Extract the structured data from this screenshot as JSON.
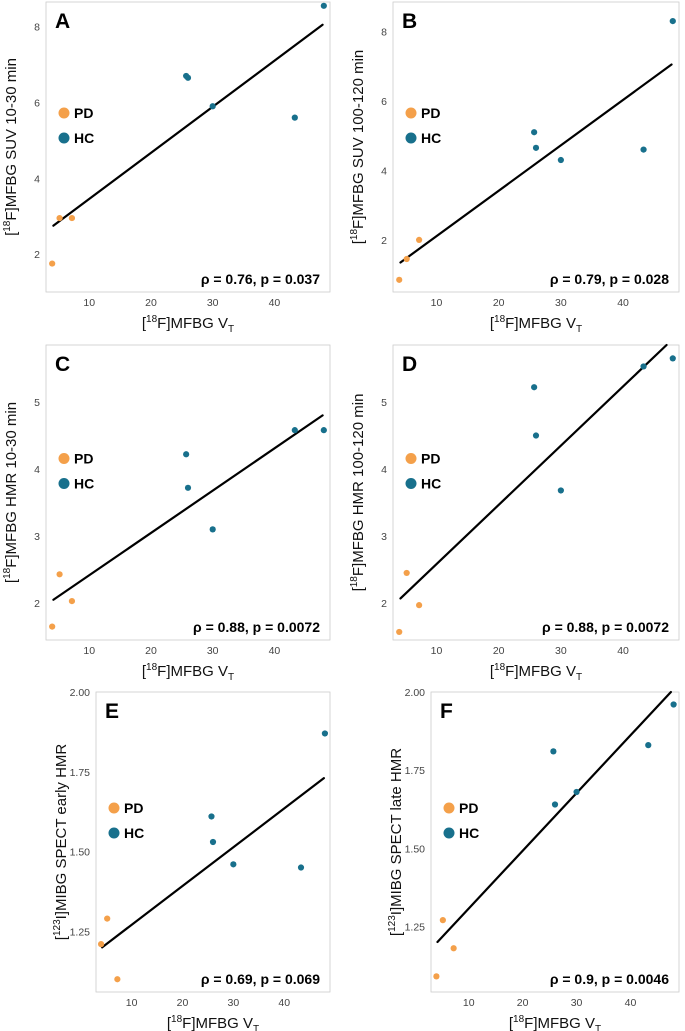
{
  "colors": {
    "PD": "#f4a04a",
    "HC": "#18708c",
    "fit": "#000000",
    "frame": "#cccccc"
  },
  "legend": [
    "PD",
    "HC"
  ],
  "chart_data": [
    {
      "id": "A",
      "type": "scatter",
      "xlabel": {
        "main": "[",
        "sup": "18",
        "mid": "F]MFBG V",
        "sub": "T"
      },
      "ylabel": {
        "pre": "[",
        "sup": "18",
        "post": "F]MFBG SUV 10-30 min"
      },
      "xlim": [
        3,
        49
      ],
      "ylim": [
        1.0,
        8.65
      ],
      "xticks": [
        10,
        20,
        30,
        40
      ],
      "yticks": [
        2,
        4,
        6,
        8
      ],
      "series": [
        {
          "name": "PD",
          "x": [
            4.0,
            5.2,
            7.2
          ],
          "y": [
            1.75,
            2.95,
            2.95
          ]
        },
        {
          "name": "HC",
          "x": [
            25.7,
            26.0,
            30.0,
            43.3,
            48.0
          ],
          "y": [
            6.7,
            6.65,
            5.9,
            5.6,
            8.55
          ]
        }
      ],
      "fit": {
        "x": [
          4.2,
          47.8
        ],
        "y": [
          2.75,
          8.05
        ]
      },
      "stat": "ρ = 0.76, p = 0.037"
    },
    {
      "id": "B",
      "type": "scatter",
      "xlabel": {
        "main": "[",
        "sup": "18",
        "mid": "F]MFBG V",
        "sub": "T"
      },
      "ylabel": {
        "pre": "[",
        "sup": "18",
        "post": "F]MFBG SUV 100-120 min"
      },
      "xlim": [
        3,
        49
      ],
      "ylim": [
        0.5,
        8.85
      ],
      "xticks": [
        10,
        20,
        30,
        40
      ],
      "yticks": [
        2,
        4,
        6,
        8
      ],
      "series": [
        {
          "name": "PD",
          "x": [
            4.0,
            5.2,
            7.2
          ],
          "y": [
            0.85,
            1.45,
            2.0
          ]
        },
        {
          "name": "HC",
          "x": [
            25.7,
            26.0,
            30.0,
            43.3,
            48.0
          ],
          "y": [
            5.1,
            4.65,
            4.3,
            4.6,
            8.3
          ]
        }
      ],
      "fit": {
        "x": [
          4.2,
          47.8
        ],
        "y": [
          1.35,
          7.05
        ]
      },
      "stat": "ρ = 0.79, p = 0.028"
    },
    {
      "id": "C",
      "type": "scatter",
      "xlabel": {
        "main": "[",
        "sup": "18",
        "mid": "F]MFBG V",
        "sub": "T"
      },
      "ylabel": {
        "pre": "[",
        "sup": "18",
        "post": "F]MFBG HMR 10-30 min"
      },
      "xlim": [
        3,
        49
      ],
      "ylim": [
        1.45,
        5.85
      ],
      "xticks": [
        10,
        20,
        30,
        40
      ],
      "yticks": [
        2,
        3,
        4,
        5
      ],
      "series": [
        {
          "name": "PD",
          "x": [
            4.0,
            5.2,
            7.2
          ],
          "y": [
            1.65,
            2.43,
            2.03
          ]
        },
        {
          "name": "HC",
          "x": [
            25.7,
            26.0,
            30.0,
            43.3,
            48.0
          ],
          "y": [
            4.22,
            3.72,
            3.1,
            4.58,
            4.58
          ]
        }
      ],
      "fit": {
        "x": [
          4.2,
          47.8
        ],
        "y": [
          2.05,
          4.8
        ]
      },
      "stat": "ρ = 0.88, p = 0.0072"
    },
    {
      "id": "D",
      "type": "scatter",
      "xlabel": {
        "main": "[",
        "sup": "18",
        "mid": "F]MFBG V",
        "sub": "T"
      },
      "ylabel": {
        "pre": "[",
        "sup": "18",
        "post": "F]MFBG HMR 100-120 min"
      },
      "xlim": [
        3,
        49
      ],
      "ylim": [
        1.45,
        5.85
      ],
      "xticks": [
        10,
        20,
        30,
        40
      ],
      "yticks": [
        2,
        3,
        4,
        5
      ],
      "series": [
        {
          "name": "PD",
          "x": [
            4.0,
            5.2,
            7.2
          ],
          "y": [
            1.57,
            2.45,
            1.97
          ]
        },
        {
          "name": "HC",
          "x": [
            25.7,
            26.0,
            30.0,
            43.3,
            48.0
          ],
          "y": [
            5.22,
            4.5,
            3.68,
            5.53,
            5.65
          ]
        }
      ],
      "fit": {
        "x": [
          4.2,
          47.0
        ],
        "y": [
          2.07,
          5.85
        ]
      },
      "stat": "ρ = 0.88, p = 0.0072"
    },
    {
      "id": "E",
      "type": "scatter",
      "xlabel": {
        "main": "[",
        "sup": "18",
        "mid": "F]MFBG V",
        "sub": "T"
      },
      "ylabel": {
        "pre": "[",
        "sup": "123",
        "post": "I]MIBG SPECT early HMR"
      },
      "xlim": [
        3,
        49
      ],
      "ylim": [
        1.06,
        2.0
      ],
      "xticks": [
        10,
        20,
        30,
        40
      ],
      "yticks": [
        1.25,
        1.5,
        1.75,
        2.0
      ],
      "ytick_labels": [
        "1.25",
        "1.50",
        "1.75",
        "2.00"
      ],
      "series": [
        {
          "name": "PD",
          "x": [
            4.0,
            5.2,
            7.2
          ],
          "y": [
            1.21,
            1.29,
            1.1
          ]
        },
        {
          "name": "HC",
          "x": [
            25.7,
            26.0,
            30.0,
            43.3,
            48.0
          ],
          "y": [
            1.61,
            1.53,
            1.46,
            1.45,
            1.87
          ]
        }
      ],
      "fit": {
        "x": [
          4.2,
          47.8
        ],
        "y": [
          1.2,
          1.73
        ]
      },
      "stat": "ρ = 0.69, p = 0.069"
    },
    {
      "id": "F",
      "type": "scatter",
      "xlabel": {
        "main": "[",
        "sup": "18",
        "mid": "F]MFBG V",
        "sub": "T"
      },
      "ylabel": {
        "pre": "[",
        "sup": "123",
        "post": "I]MIBG SPECT late HMR"
      },
      "xlim": [
        3,
        49
      ],
      "ylim": [
        1.04,
        2.0
      ],
      "xticks": [
        10,
        20,
        30,
        40
      ],
      "yticks": [
        1.25,
        1.5,
        1.75,
        2.0
      ],
      "ytick_labels": [
        "1.25",
        "1.50",
        "1.75",
        "2.00"
      ],
      "series": [
        {
          "name": "PD",
          "x": [
            4.0,
            5.2,
            7.2
          ],
          "y": [
            1.09,
            1.27,
            1.18
          ]
        },
        {
          "name": "HC",
          "x": [
            25.7,
            26.0,
            30.0,
            43.3,
            48.0
          ],
          "y": [
            1.81,
            1.64,
            1.68,
            1.83,
            1.96
          ]
        }
      ],
      "fit": {
        "x": [
          4.2,
          47.5
        ],
        "y": [
          1.2,
          2.0
        ]
      },
      "stat": "ρ = 0.9, p = 0.0046"
    }
  ]
}
